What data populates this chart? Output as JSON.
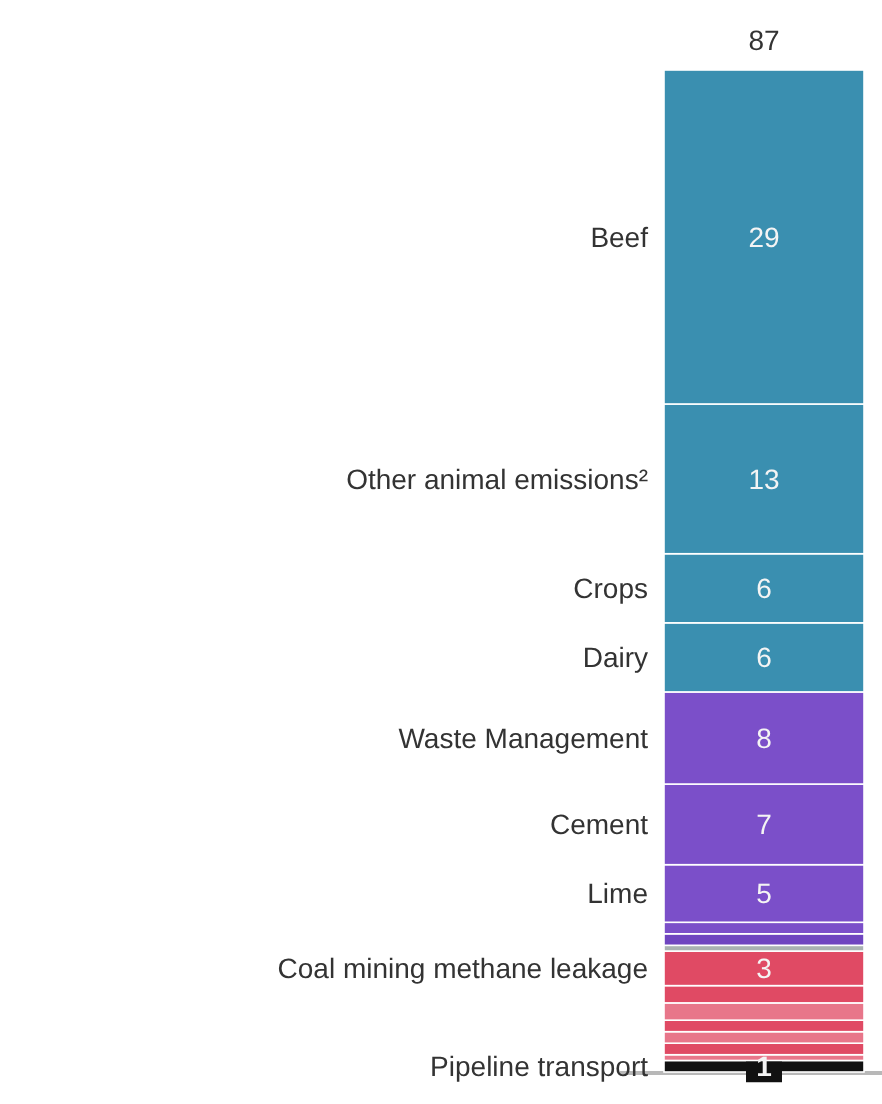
{
  "chart_data": {
    "type": "bar",
    "stacked": true,
    "categories": [
      null
    ],
    "totals": [
      "87"
    ],
    "series": [
      {
        "name": "Pipeline transport",
        "color": "#111111",
        "values": [
          1
        ],
        "value_labels": [
          "1"
        ]
      },
      {
        "color": "#e8768a",
        "values": [
          0.5
        ]
      },
      {
        "color": "#e04a64",
        "values": [
          1
        ]
      },
      {
        "color": "#e8768a",
        "values": [
          1
        ]
      },
      {
        "color": "#e04a64",
        "values": [
          1
        ]
      },
      {
        "color": "#e8768a",
        "values": [
          1.5
        ]
      },
      {
        "color": "#e04a64",
        "values": [
          1.5
        ]
      },
      {
        "name": "Coal mining methane  leakage",
        "color": "#e04a64",
        "values": [
          3
        ],
        "value_labels": [
          "3"
        ]
      },
      {
        "color": "#a9b2b2",
        "values": [
          0.5
        ]
      },
      {
        "color": "#6f45c0",
        "values": [
          1
        ]
      },
      {
        "color": "#7b4fc9",
        "values": [
          1
        ]
      },
      {
        "name": "Lime",
        "color": "#7b4fc9",
        "values": [
          5
        ],
        "value_labels": [
          "5"
        ]
      },
      {
        "name": "Cement",
        "color": "#7b4fc9",
        "values": [
          7
        ],
        "value_labels": [
          "7"
        ]
      },
      {
        "name": "Waste Management",
        "color": "#7b4fc9",
        "values": [
          8
        ],
        "value_labels": [
          "8"
        ]
      },
      {
        "name": "Dairy",
        "color": "#3a8fb0",
        "values": [
          6
        ],
        "value_labels": [
          "6"
        ]
      },
      {
        "name": "Crops",
        "color": "#3a8fb0",
        "values": [
          6
        ],
        "value_labels": [
          "6"
        ]
      },
      {
        "name": "Other animal emissions²",
        "color": "#3a8fb0",
        "values": [
          13
        ],
        "value_labels": [
          "13"
        ]
      },
      {
        "name": "Beef",
        "color": "#3a8fb0",
        "values": [
          29
        ],
        "value_labels": [
          "29"
        ]
      }
    ]
  }
}
